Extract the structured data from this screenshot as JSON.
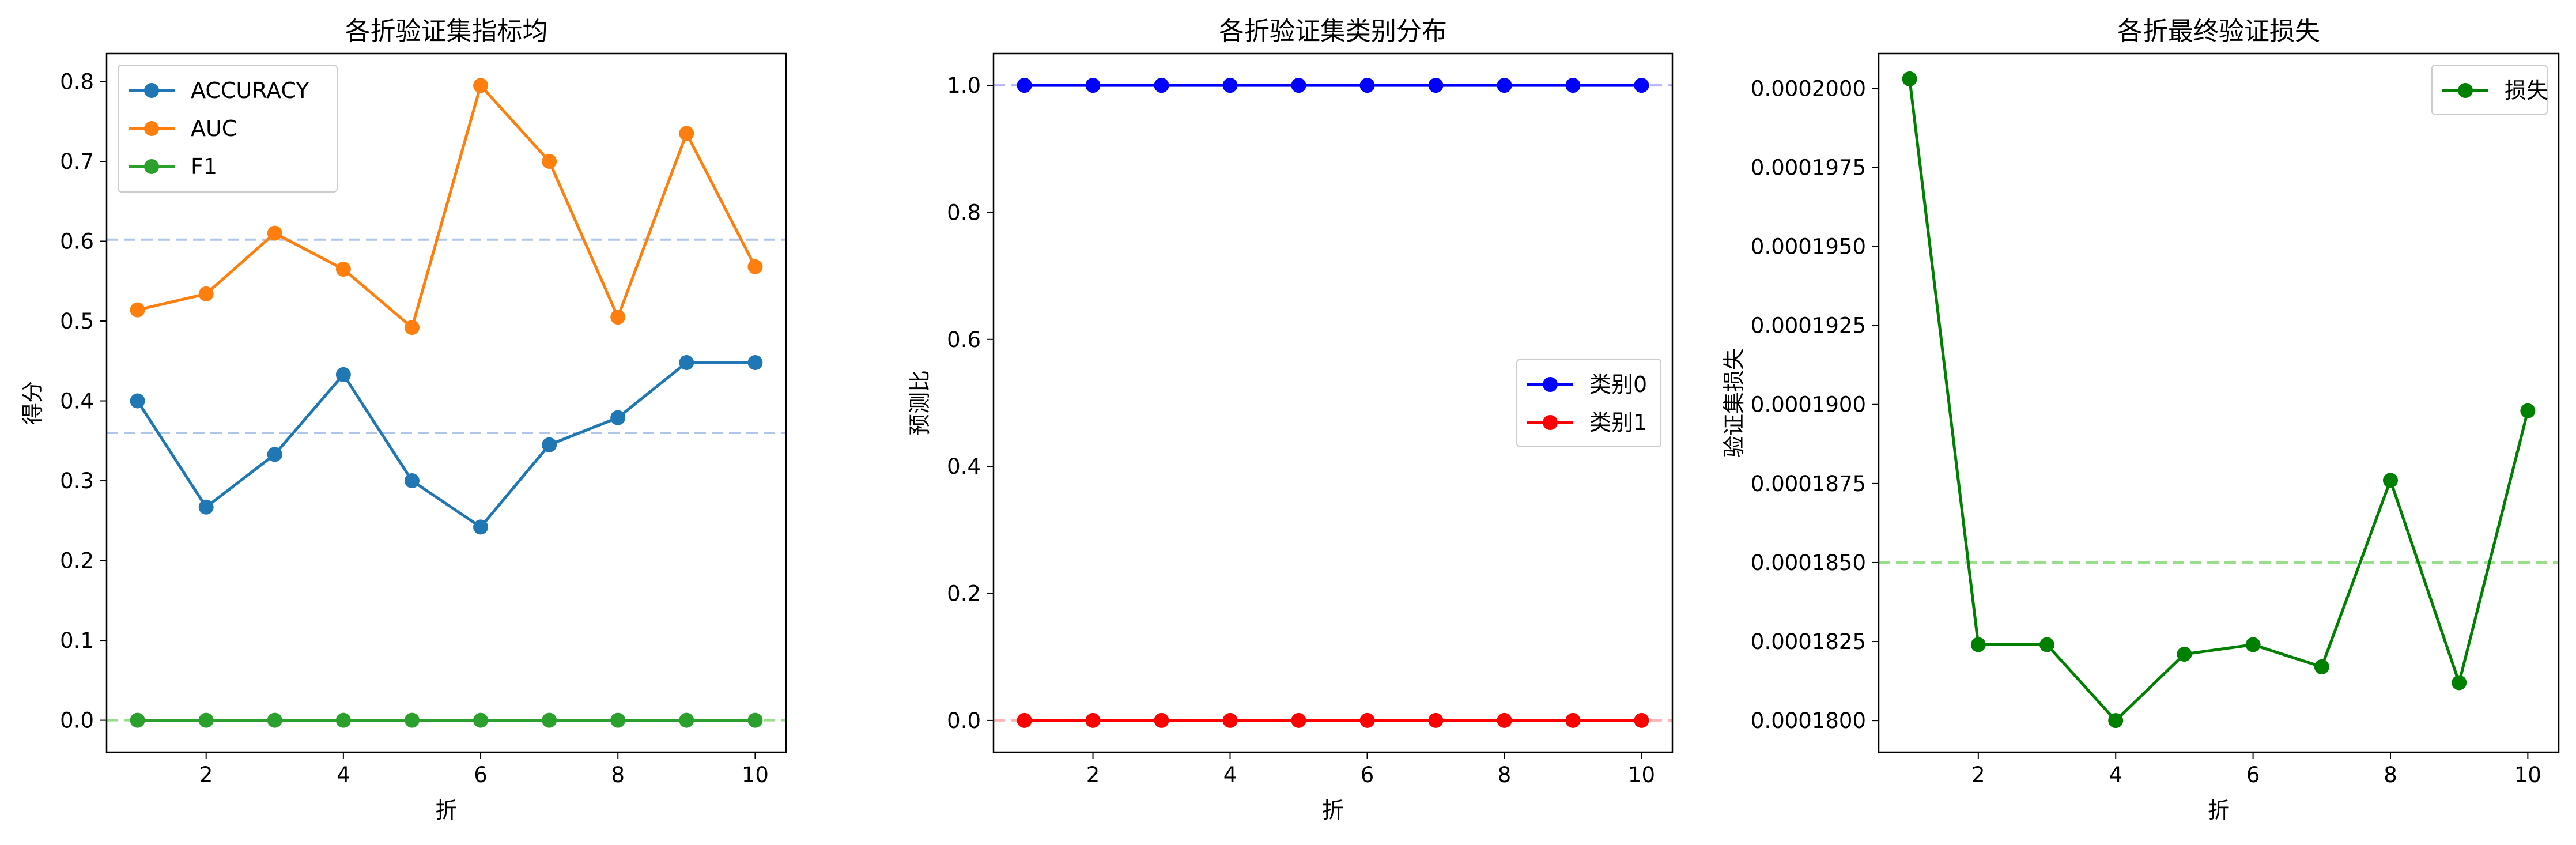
{
  "chart_data": [
    {
      "type": "line",
      "title": "各折验证集指标均",
      "xlabel": "折",
      "ylabel": "得分",
      "xlim": [
        0.55,
        10.45
      ],
      "ylim": [
        -0.04,
        0.835
      ],
      "xticks": [
        2,
        4,
        6,
        8,
        10
      ],
      "yticks": [
        0.0,
        0.1,
        0.2,
        0.3,
        0.4,
        0.5,
        0.6,
        0.7,
        0.8
      ],
      "ytick_labels": [
        "0.0",
        "0.1",
        "0.2",
        "0.3",
        "0.4",
        "0.5",
        "0.6",
        "0.7",
        "0.8"
      ],
      "legend_position": "top-left",
      "x": [
        1,
        2,
        3,
        4,
        5,
        6,
        7,
        8,
        9,
        10
      ],
      "series": [
        {
          "name": "ACCURACY",
          "color": "#1f77b4",
          "values": [
            0.4,
            0.267,
            0.333,
            0.433,
            0.3,
            0.242,
            0.345,
            0.379,
            0.448,
            0.448
          ]
        },
        {
          "name": "AUC",
          "color": "#ff7f0e",
          "values": [
            0.514,
            0.534,
            0.61,
            0.565,
            0.492,
            0.795,
            0.7,
            0.505,
            0.735,
            0.568
          ]
        },
        {
          "name": "F1",
          "color": "#2ca02c",
          "values": [
            0.0,
            0.0,
            0.0,
            0.0,
            0.0,
            0.0,
            0.0,
            0.0,
            0.0,
            0.0
          ]
        }
      ],
      "reference_lines": [
        {
          "y": 0.602,
          "color": "#aec7e8"
        },
        {
          "y": 0.36,
          "color": "#aec7e8"
        },
        {
          "y": 0.0,
          "color": "#98df8a"
        }
      ]
    },
    {
      "type": "line",
      "title": "各折验证集类别分布",
      "xlabel": "折",
      "ylabel": "预测比",
      "xlim": [
        0.55,
        10.45
      ],
      "ylim": [
        -0.05,
        1.05
      ],
      "xticks": [
        2,
        4,
        6,
        8,
        10
      ],
      "yticks": [
        0.0,
        0.2,
        0.4,
        0.6,
        0.8,
        1.0
      ],
      "ytick_labels": [
        "0.0",
        "0.2",
        "0.4",
        "0.6",
        "0.8",
        "1.0"
      ],
      "legend_position": "center-right",
      "x": [
        1,
        2,
        3,
        4,
        5,
        6,
        7,
        8,
        9,
        10
      ],
      "series": [
        {
          "name": "类别0",
          "color": "#0000ff",
          "values": [
            1.0,
            1.0,
            1.0,
            1.0,
            1.0,
            1.0,
            1.0,
            1.0,
            1.0,
            1.0
          ]
        },
        {
          "name": "类别1",
          "color": "#ff0000",
          "values": [
            0.0,
            0.0,
            0.0,
            0.0,
            0.0,
            0.0,
            0.0,
            0.0,
            0.0,
            0.0
          ]
        }
      ],
      "reference_lines": [
        {
          "y": 1.0,
          "color": "#b3b3ff"
        },
        {
          "y": 0.0,
          "color": "#ffb3b3"
        }
      ]
    },
    {
      "type": "line",
      "title": "各折最终验证损失",
      "xlabel": "折",
      "ylabel": "验证集损失",
      "xlim": [
        0.55,
        10.45
      ],
      "ylim": [
        0.000179,
        0.0002011
      ],
      "xticks": [
        2,
        4,
        6,
        8,
        10
      ],
      "yticks": [
        0.00018,
        0.0001825,
        0.000185,
        0.0001875,
        0.00019,
        0.0001925,
        0.000195,
        0.0001975,
        0.0002
      ],
      "ytick_labels": [
        "0.0001800",
        "0.0001825",
        "0.0001850",
        "0.0001875",
        "0.0001900",
        "0.0001925",
        "0.0001950",
        "0.0001975",
        "0.0002000"
      ],
      "legend_position": "top-right",
      "x": [
        1,
        2,
        3,
        4,
        5,
        6,
        7,
        8,
        9,
        10
      ],
      "series": [
        {
          "name": "损失",
          "color": "#008000",
          "values": [
            0.0002003,
            0.0001824,
            0.0001824,
            0.00018,
            0.0001821,
            0.0001824,
            0.0001817,
            0.0001876,
            0.0001812,
            0.0001898
          ]
        }
      ],
      "reference_lines": [
        {
          "y": 0.000185,
          "color": "#98df8a"
        }
      ]
    }
  ]
}
